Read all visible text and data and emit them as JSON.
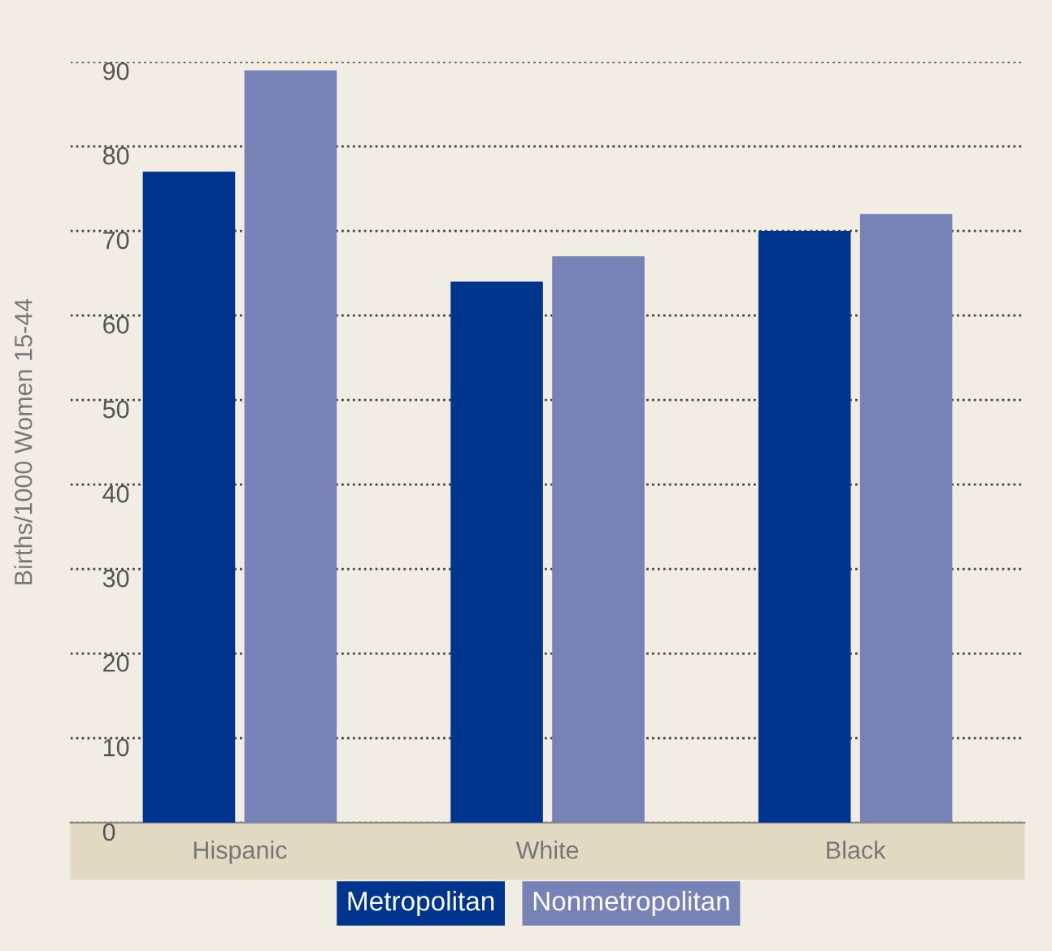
{
  "chart_data": {
    "type": "bar",
    "ylabel": "Births/1000 Women 15-44",
    "categories": [
      "Hispanic",
      "White",
      "Black"
    ],
    "series": [
      {
        "name": "Metropolitan",
        "color": "#00358f",
        "values": [
          77,
          64,
          70
        ]
      },
      {
        "name": "Nonmetropolitan",
        "color": "#7783b6",
        "values": [
          89,
          67,
          72
        ]
      }
    ],
    "ylim": [
      0,
      90
    ],
    "yticks": [
      0,
      10,
      20,
      30,
      40,
      50,
      60,
      70,
      80,
      90
    ],
    "grid": "y",
    "legend": "bottom"
  }
}
